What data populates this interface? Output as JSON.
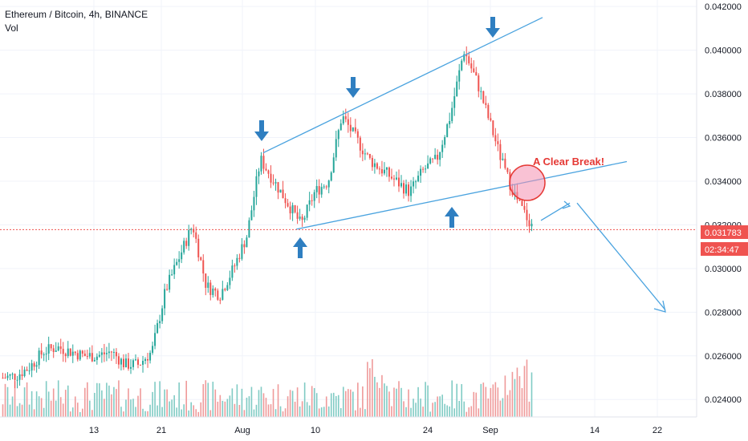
{
  "header": {
    "title": "Ethereum / Bitcoin, 4h, BINANCE",
    "vol_label": "Vol"
  },
  "annotation": {
    "break_label": "A Clear Break!"
  },
  "price_badge": {
    "price": "0.031783",
    "countdown": "02:34:47"
  },
  "colors": {
    "up": "#26a69a",
    "down": "#ef5350",
    "trendline": "#4aa3df",
    "arrow": "#2f7fc1",
    "break": "#e53935",
    "volume_up": "#80cbc4",
    "volume_down": "#ef9a9a"
  },
  "icons": [
    "arrow-down-icon",
    "arrow-up-icon"
  ],
  "chart_data": {
    "type": "candlestick",
    "ylim": [
      0.0232,
      0.0423
    ],
    "y_ticks": [
      "0.024000",
      "0.026000",
      "0.028000",
      "0.030000",
      "0.032000",
      "0.034000",
      "0.036000",
      "0.038000",
      "0.040000",
      "0.042000"
    ],
    "x_ticks": [
      "13",
      "21",
      "Aug",
      "10",
      "24",
      "Sep",
      "14",
      "22"
    ],
    "current_price": 0.031783,
    "series": [
      {
        "values": [
          0.025,
          0.0251,
          0.0255,
          0.0262,
          0.0264,
          0.0262,
          0.026,
          0.026,
          0.0262,
          0.0256,
          0.0256,
          0.0262,
          0.029,
          0.0305,
          0.032,
          0.0292,
          0.0288,
          0.03,
          0.0315,
          0.035,
          0.034,
          0.033,
          0.032,
          0.0335,
          0.034,
          0.037,
          0.036,
          0.035,
          0.0345,
          0.034,
          0.0335,
          0.0345,
          0.035,
          0.037,
          0.04,
          0.0385,
          0.0365,
          0.0345,
          0.033,
          0.032
        ]
      }
    ]
  }
}
